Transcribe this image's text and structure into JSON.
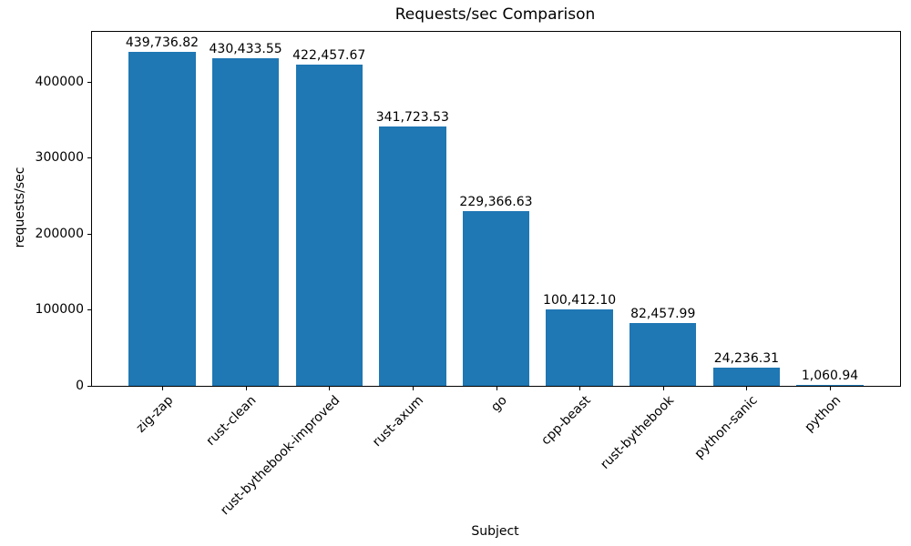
{
  "chart_data": {
    "type": "bar",
    "title": "Requests/sec Comparison",
    "xlabel": "Subject",
    "ylabel": "requests/sec",
    "categories": [
      "zig-zap",
      "rust-clean",
      "rust-bythebook-improved",
      "rust-axum",
      "go",
      "cpp-beast",
      "rust-bythebook",
      "python-sanic",
      "python"
    ],
    "values": [
      439736.82,
      430433.55,
      422457.67,
      341723.53,
      229366.63,
      100412.1,
      82457.99,
      24236.31,
      1060.94
    ],
    "value_labels": [
      "439,736.82",
      "430,433.55",
      "422,457.67",
      "341,723.53",
      "229,366.63",
      "100,412.10",
      "82,457.99",
      "24,236.31",
      "1,060.94"
    ],
    "yticks": [
      0,
      100000,
      200000,
      300000,
      400000
    ],
    "ytick_labels": [
      "0",
      "100000",
      "200000",
      "300000",
      "400000"
    ],
    "ylim": [
      0,
      465672
    ],
    "bar_color": "#1f77b4",
    "bar_width_fraction": 0.8,
    "grid": false,
    "legend": null
  }
}
